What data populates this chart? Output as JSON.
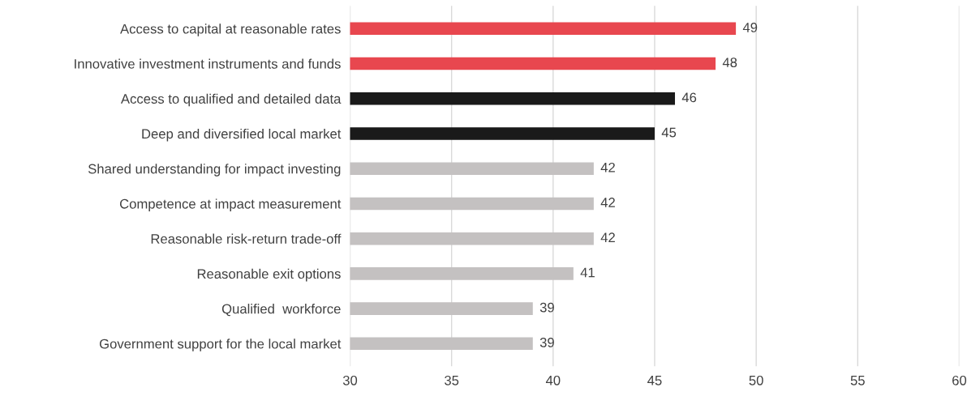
{
  "chart_data": {
    "type": "bar",
    "orientation": "horizontal",
    "categories": [
      "Access to capital at reasonable rates",
      "Innovative investment instruments and funds",
      "Access to qualified and detailed data",
      "Deep and diversified local market",
      "Shared understanding for impact investing",
      "Competence at impact measurement",
      "Reasonable risk-return trade-off",
      "Reasonable exit options",
      "Qualified  workforce",
      "Government support for the local market"
    ],
    "values": [
      49,
      48,
      46,
      45,
      42,
      42,
      42,
      41,
      39,
      39
    ],
    "colors": [
      "#e8474f",
      "#e8474f",
      "#1a1a1a",
      "#1a1a1a",
      "#c4c1c1",
      "#c4c1c1",
      "#c4c1c1",
      "#c4c1c1",
      "#c4c1c1",
      "#c4c1c1"
    ],
    "xlim": [
      30,
      60
    ],
    "xticks": [
      30,
      35,
      40,
      45,
      50,
      55,
      60
    ],
    "grid": "x",
    "data_labels": true,
    "legend": false
  }
}
